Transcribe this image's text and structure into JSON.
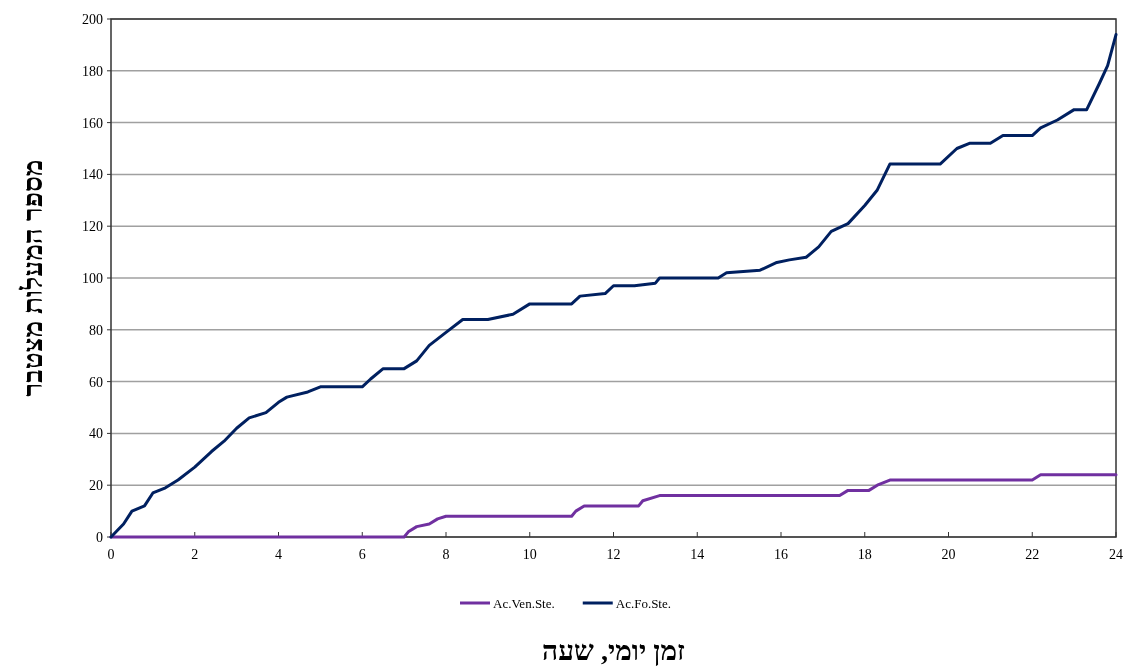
{
  "chart_data": {
    "type": "line",
    "xlabel": "זמן יומי, שעה",
    "ylabel": "מספר המעלות מצטבר",
    "xlim": [
      0,
      24
    ],
    "xticks": [
      0,
      2,
      4,
      6,
      8,
      10,
      12,
      14,
      16,
      18,
      20,
      22,
      24
    ],
    "ylim": [
      0,
      200
    ],
    "yticks": [
      0,
      20,
      40,
      60,
      80,
      100,
      120,
      140,
      160,
      180,
      200
    ],
    "grid": "y",
    "legend": "bottom",
    "marker": "none",
    "line_style": "solid",
    "series": [
      {
        "name": "Ac.Ven.Ste.",
        "color": "#7030a0",
        "x": [
          0,
          7,
          7.1,
          7.3,
          7.6,
          7.8,
          8,
          11,
          11.1,
          11.3,
          12.6,
          12.7,
          13.1,
          17.4,
          17.6,
          18.1,
          18.3,
          18.6,
          22,
          22.2,
          24
        ],
        "values": [
          0,
          0,
          2,
          4,
          5,
          7,
          8,
          8,
          10,
          12,
          12,
          14,
          16,
          16,
          18,
          18,
          20,
          22,
          22,
          24,
          24
        ]
      },
      {
        "name": "Ac.Fo.Ste.",
        "color": "#002060",
        "x": [
          0,
          0.3,
          0.5,
          0.8,
          1,
          1.3,
          1.6,
          2,
          2.4,
          2.7,
          3,
          3.3,
          3.7,
          4,
          4.2,
          4.7,
          5,
          6,
          6.2,
          6.5,
          7,
          7.3,
          7.6,
          8,
          8.4,
          9,
          9.6,
          10,
          11,
          11.2,
          11.8,
          12,
          12.5,
          13,
          13.1,
          14.5,
          14.7,
          15.5,
          15.9,
          16.2,
          16.6,
          16.9,
          17.2,
          17.6,
          18,
          18.3,
          18.6,
          19.8,
          20.2,
          20.5,
          21,
          21.3,
          22,
          22.2,
          22.6,
          23,
          23.3,
          23.6,
          23.8,
          24
        ],
        "values": [
          0,
          5,
          10,
          12,
          17,
          19,
          22,
          27,
          33,
          37,
          42,
          46,
          48,
          52,
          54,
          56,
          58,
          58,
          61,
          65,
          65,
          68,
          74,
          79,
          84,
          84,
          86,
          90,
          90,
          93,
          94,
          97,
          97,
          98,
          100,
          100,
          102,
          103,
          106,
          107,
          108,
          112,
          118,
          121,
          128,
          134,
          144,
          144,
          150,
          152,
          152,
          155,
          155,
          158,
          161,
          165,
          165,
          175,
          182,
          194
        ]
      }
    ]
  }
}
